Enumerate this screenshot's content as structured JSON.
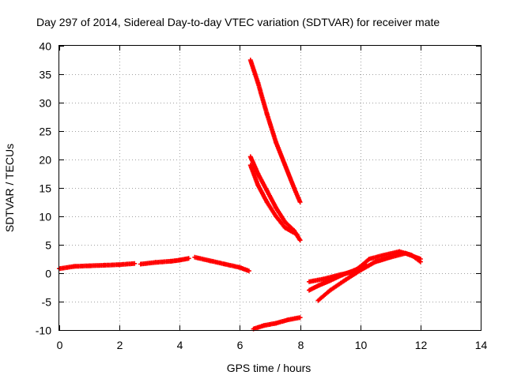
{
  "chart_data": {
    "type": "scatter",
    "title": "Day 297 of 2014, Sidereal Day-to-day VTEC variation (SDTVAR) for receiver mate",
    "xlabel": "GPS time / hours",
    "ylabel": "SDTVAR / TECUs",
    "xlim": [
      0,
      14
    ],
    "ylim": [
      -10,
      40
    ],
    "xticks": [
      0,
      2,
      4,
      6,
      8,
      10,
      12,
      14
    ],
    "yticks": [
      -10,
      -5,
      0,
      5,
      10,
      15,
      20,
      25,
      30,
      35,
      40
    ],
    "grid": true,
    "marker": "plus",
    "color": "#ff0000",
    "tracks": [
      {
        "x": [
          0.0,
          0.5,
          1.0,
          1.5,
          2.0,
          2.5
        ],
        "y": [
          0.8,
          1.2,
          1.3,
          1.4,
          1.5,
          1.7
        ]
      },
      {
        "x": [
          2.7,
          3.2,
          3.7,
          4.0,
          4.3
        ],
        "y": [
          1.6,
          1.9,
          2.1,
          2.3,
          2.6
        ]
      },
      {
        "x": [
          4.5,
          5.0,
          5.5,
          6.0,
          6.3
        ],
        "y": [
          2.8,
          2.2,
          1.6,
          1.0,
          0.4
        ]
      },
      {
        "x": [
          6.35,
          6.6,
          6.9,
          7.2,
          7.5,
          7.8,
          8.0
        ],
        "y": [
          37.5,
          33.5,
          28.0,
          23.0,
          19.0,
          15.0,
          12.5
        ]
      },
      {
        "x": [
          6.35,
          6.6,
          6.9,
          7.2,
          7.5,
          7.8,
          8.0
        ],
        "y": [
          20.5,
          17.5,
          14.5,
          11.5,
          9.0,
          7.5,
          5.8
        ]
      },
      {
        "x": [
          6.35,
          6.6,
          6.9,
          7.2,
          7.5,
          7.9
        ],
        "y": [
          19.0,
          15.5,
          12.5,
          10.0,
          8.0,
          6.8
        ]
      },
      {
        "x": [
          6.45,
          6.8,
          7.2,
          7.6,
          8.0
        ],
        "y": [
          -9.8,
          -9.2,
          -8.8,
          -8.2,
          -7.8
        ]
      },
      {
        "x": [
          8.3,
          8.8,
          9.3,
          9.8,
          10.3,
          10.8,
          11.3,
          11.7,
          12.0
        ],
        "y": [
          -1.5,
          -1.0,
          -0.3,
          0.3,
          2.5,
          3.2,
          3.8,
          3.2,
          2.0
        ]
      },
      {
        "x": [
          8.6,
          9.0,
          9.5,
          10.0,
          10.5,
          11.0,
          11.5,
          12.0
        ],
        "y": [
          -4.8,
          -3.0,
          -1.2,
          0.5,
          2.0,
          2.8,
          3.5,
          2.5
        ]
      },
      {
        "x": [
          8.3,
          8.6,
          9.0,
          9.4,
          9.8,
          10.2
        ],
        "y": [
          -3.0,
          -2.2,
          -1.3,
          -0.3,
          0.5,
          1.5
        ]
      }
    ]
  }
}
